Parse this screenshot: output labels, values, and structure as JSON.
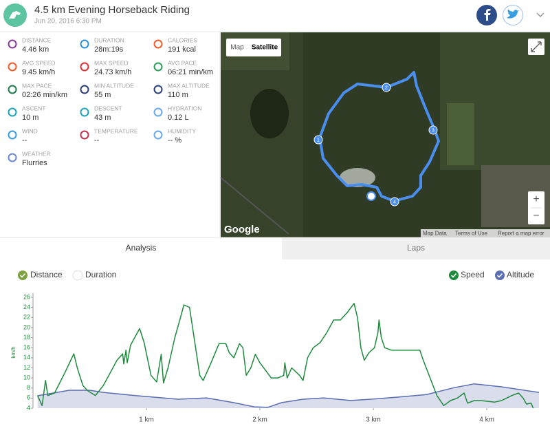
{
  "header": {
    "title": "4.5 km Evening Horseback Riding",
    "subtitle": "Jun 20, 2016 6:30 PM"
  },
  "stats": [
    {
      "label": "DISTANCE",
      "value": "4.46 km"
    },
    {
      "label": "DURATION",
      "value": "28m:19s"
    },
    {
      "label": "CALORIES",
      "value": "191 kcal"
    },
    {
      "label": "AVG SPEED",
      "value": "9.45 km/h"
    },
    {
      "label": "MAX SPEED",
      "value": "24.73 km/h"
    },
    {
      "label": "AVG PACE",
      "value": "06:21 min/km"
    },
    {
      "label": "MAX PACE",
      "value": "02:26 min/km"
    },
    {
      "label": "MIN ALTITUDE",
      "value": "55 m"
    },
    {
      "label": "MAX ALTITUDE",
      "value": "110 m"
    },
    {
      "label": "ASCENT",
      "value": "10 m"
    },
    {
      "label": "DESCENT",
      "value": "43 m"
    },
    {
      "label": "HYDRATION",
      "value": "0.12 L"
    },
    {
      "label": "WIND",
      "value": "--"
    },
    {
      "label": "TEMPERATURE",
      "value": "--"
    },
    {
      "label": "HUMIDITY",
      "value": "-- %"
    },
    {
      "label": "WEATHER",
      "value": "Flurries"
    }
  ],
  "map": {
    "buttons": [
      "Map",
      "Satellite"
    ],
    "brand": "Google",
    "zoom": [
      "+",
      "−"
    ],
    "footer": [
      "Map Data",
      "Terms of Use",
      "Report a map error"
    ],
    "markers": [
      "1",
      "2",
      "3",
      "4"
    ]
  },
  "tabs": [
    "Analysis",
    "Laps"
  ],
  "x_axis_options": [
    "Distance",
    "Duration"
  ],
  "chart_data": {
    "type": "line",
    "ylabel": "km/h",
    "xlim": [
      0,
      4.46
    ],
    "xticks": [
      {
        "value": 1,
        "label": "1 km"
      },
      {
        "value": 2,
        "label": "2 km"
      },
      {
        "value": 3,
        "label": "3 km"
      },
      {
        "value": 4,
        "label": "4 km"
      }
    ],
    "ylim": [
      4,
      26
    ],
    "yticks": [
      4,
      6,
      8,
      10,
      12,
      14,
      16,
      18,
      20,
      22,
      24,
      26
    ],
    "y2lim": [
      53,
      313
    ],
    "series": [
      {
        "name": "Speed",
        "color": "#1e8a3c",
        "x": [
          0.04,
          0.08,
          0.11,
          0.13,
          0.19,
          0.28,
          0.36,
          0.39,
          0.44,
          0.48,
          0.55,
          0.62,
          0.68,
          0.74,
          0.79,
          0.8,
          0.82,
          0.83,
          0.86,
          0.94,
          0.98,
          1.04,
          1.09,
          1.13,
          1.15,
          1.19,
          1.25,
          1.3,
          1.33,
          1.38,
          1.42,
          1.47,
          1.5,
          1.56,
          1.64,
          1.7,
          1.73,
          1.77,
          1.82,
          1.85,
          1.88,
          1.92,
          1.96,
          2.0,
          2.05,
          2.1,
          2.16,
          2.21,
          2.22,
          2.24,
          2.28,
          2.35,
          2.38,
          2.42,
          2.47,
          2.53,
          2.59,
          2.65,
          2.71,
          2.77,
          2.83,
          2.86,
          2.89,
          2.92,
          2.96,
          3.01,
          3.04,
          3.05,
          3.07,
          3.1,
          3.16,
          3.35,
          3.41,
          3.44,
          3.5,
          3.56,
          3.62,
          3.68,
          3.74,
          3.8,
          3.83,
          3.89,
          3.95,
          4.07,
          4.13,
          4.22,
          4.28,
          4.32,
          4.35,
          4.39,
          4.41
        ],
        "values": [
          6.5,
          4.5,
          9.5,
          6.5,
          7,
          11,
          14.8,
          12,
          8.5,
          7.5,
          6.5,
          8.5,
          11,
          13.5,
          14.8,
          12.8,
          15.5,
          13,
          16.5,
          19.8,
          17,
          10.5,
          9.2,
          14.7,
          9,
          12,
          18,
          22,
          24.5,
          24,
          18,
          10.5,
          9.5,
          12.5,
          16.8,
          16.8,
          15,
          14,
          16.8,
          16,
          10.5,
          12,
          14.7,
          13,
          11.5,
          10,
          10,
          10.5,
          13,
          10,
          12,
          10.5,
          9.5,
          14,
          16,
          17,
          19,
          21.5,
          21.5,
          23,
          24.8,
          22,
          16,
          13.5,
          15,
          16,
          19,
          21.5,
          18,
          16,
          15.5,
          15.5,
          15.5,
          13.5,
          10,
          6.5,
          4.5,
          5.5,
          6,
          7,
          5,
          5.5,
          5.5,
          5.2,
          5.5,
          6.5,
          7,
          6,
          4.8,
          5,
          4
        ]
      },
      {
        "name": "Altitude",
        "color": "#5a6db0",
        "axis": "y2",
        "x": [
          0.04,
          0.32,
          0.5,
          0.62,
          0.92,
          1.28,
          1.53,
          1.77,
          1.95,
          2.07,
          2.19,
          2.38,
          2.56,
          2.8,
          2.98,
          3.22,
          3.47,
          3.71,
          3.89,
          4.13,
          4.38,
          4.46
        ],
        "values": [
          82,
          95,
          95,
          90,
          82,
          74,
          77,
          66,
          56,
          55,
          66,
          74,
          77,
          71,
          74,
          79,
          85,
          101,
          110,
          103,
          93,
          90
        ]
      }
    ]
  }
}
